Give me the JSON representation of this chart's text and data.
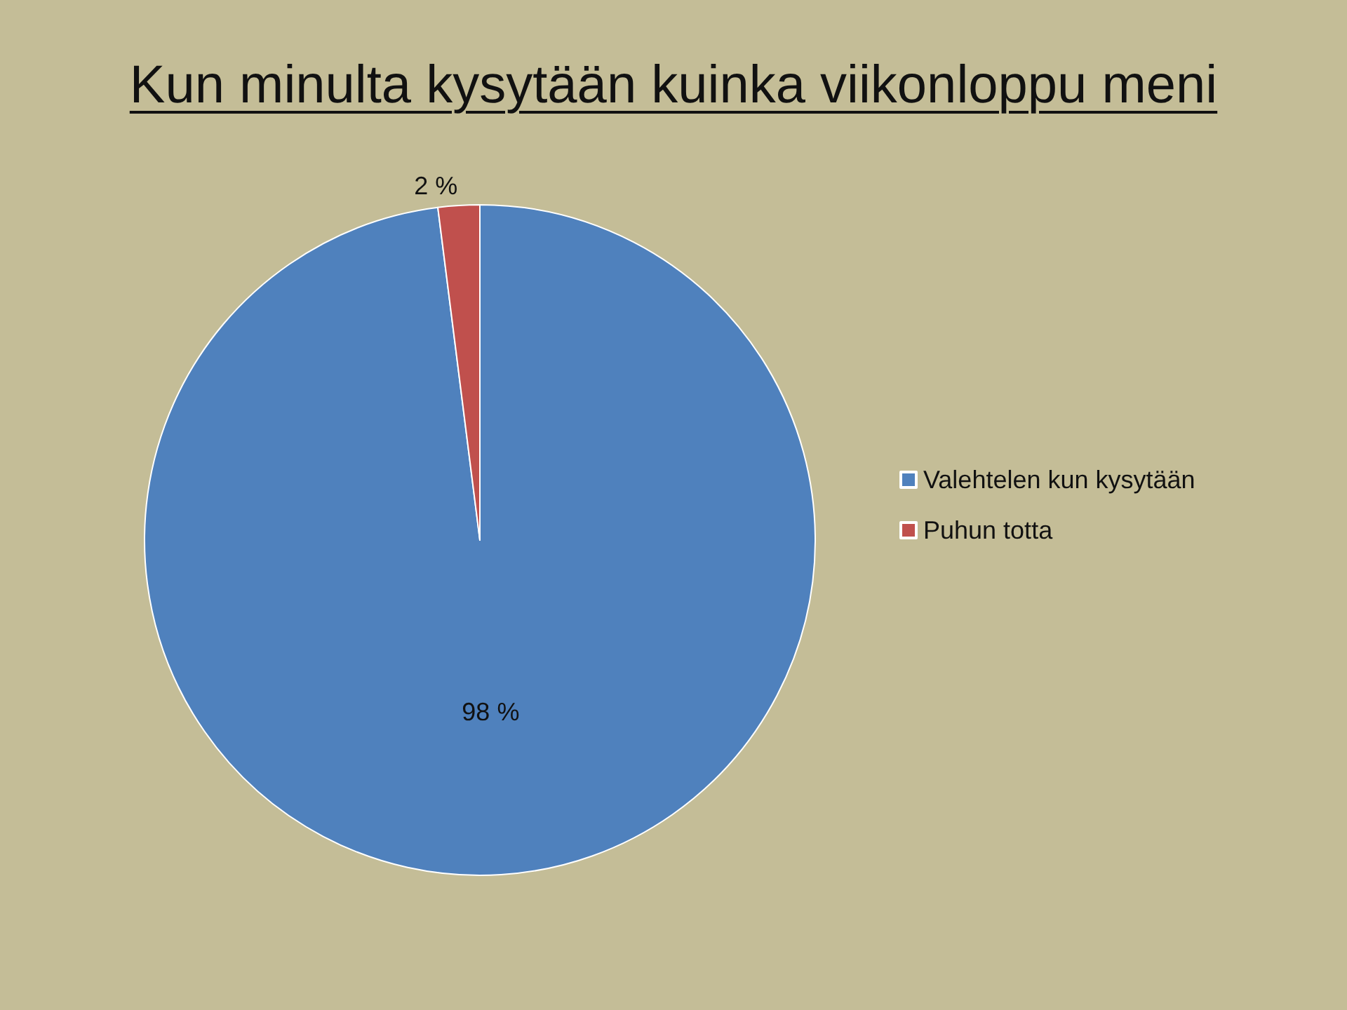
{
  "chart_data": {
    "type": "pie",
    "title": "Kun minulta kysytään kuinka viikonloppu meni",
    "categories": [
      "Valehtelen kun kysytään",
      "Puhun totta"
    ],
    "values": [
      98,
      2
    ],
    "colors": [
      "#4f81bd",
      "#c0504d"
    ],
    "value_labels": [
      "98 %",
      "2 %"
    ],
    "legend": "right"
  }
}
